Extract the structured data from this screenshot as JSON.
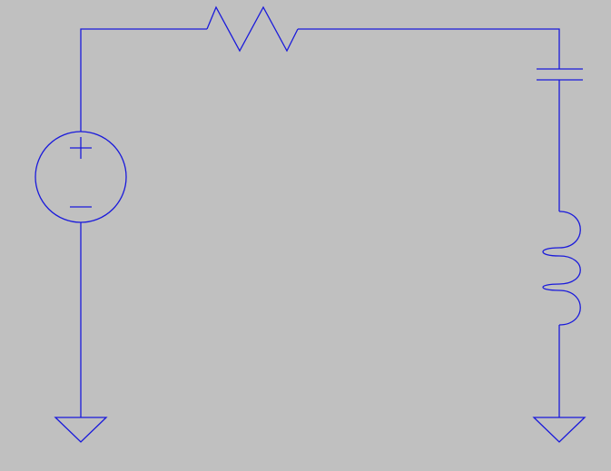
{
  "schematic": {
    "background_color": "#c0c0c0",
    "wire_color": "#1a1adb",
    "components": [
      {
        "kind": "voltage-source",
        "terminals": [
          "+",
          "-"
        ],
        "icon": "voltage-source-icon"
      },
      {
        "kind": "resistor",
        "icon": "resistor-icon"
      },
      {
        "kind": "capacitor",
        "icon": "capacitor-icon"
      },
      {
        "kind": "inductor",
        "icon": "inductor-icon"
      },
      {
        "kind": "ground",
        "count": 2,
        "icon": "ground-icon"
      }
    ]
  }
}
